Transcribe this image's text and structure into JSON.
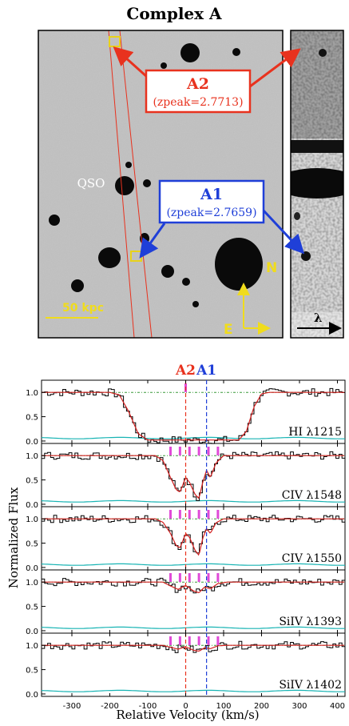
{
  "title": "Complex A",
  "image": {
    "qso_label": "QSO",
    "scale_bar": "50 kpc",
    "compass_n": "N",
    "compass_e": "E",
    "lambda": "λ",
    "a2_name": "A2",
    "a2_z": "(zpeak=2.7713)",
    "a1_name": "A1",
    "a1_z": "(zpeak=2.7659)",
    "colors": {
      "a2": "#e8321e",
      "a1": "#1f3fd8",
      "aperture": "#e8d21a",
      "scale": "#f0dc1c"
    }
  },
  "chart_data": {
    "type": "line",
    "header_a2": "A2",
    "header_a1": "A1",
    "xlabel": "Relative Velocity (km/s)",
    "ylabel": "Normalized Flux",
    "xlim": [
      -380,
      420
    ],
    "x_ticks": [
      "-300",
      "-200",
      "-100",
      "0",
      "100",
      "200",
      "300",
      "400"
    ],
    "x_tick_values": [
      -300,
      -200,
      -100,
      0,
      100,
      200,
      300,
      400
    ],
    "y_ticks": [
      "0.0",
      "0.5",
      "1.0"
    ],
    "vline_a2": 0,
    "vline_a1": 55,
    "panels": [
      {
        "label": "HI λ1215",
        "ylim": [
          -0.05,
          1.25
        ],
        "components": [
          0
        ],
        "model": [
          [
            -380,
            1.0
          ],
          [
            -200,
            1.0
          ],
          [
            -175,
            0.95
          ],
          [
            -150,
            0.6
          ],
          [
            -125,
            0.15
          ],
          [
            -100,
            0.02
          ],
          [
            140,
            0.02
          ],
          [
            160,
            0.2
          ],
          [
            180,
            0.7
          ],
          [
            200,
            0.97
          ],
          [
            220,
            1.0
          ],
          [
            420,
            1.0
          ]
        ]
      },
      {
        "label": "CIV λ1548",
        "ylim": [
          -0.05,
          1.25
        ],
        "components": [
          -40,
          -15,
          10,
          35,
          60,
          85
        ],
        "model": [
          [
            -380,
            1.0
          ],
          [
            -80,
            1.0
          ],
          [
            -60,
            0.9
          ],
          [
            -40,
            0.55
          ],
          [
            -25,
            0.3
          ],
          [
            -15,
            0.25
          ],
          [
            0,
            0.55
          ],
          [
            10,
            0.45
          ],
          [
            25,
            0.2
          ],
          [
            35,
            0.12
          ],
          [
            45,
            0.45
          ],
          [
            55,
            0.7
          ],
          [
            65,
            0.55
          ],
          [
            80,
            0.85
          ],
          [
            100,
            1.0
          ],
          [
            420,
            1.0
          ]
        ]
      },
      {
        "label": "CIV λ1550",
        "ylim": [
          -0.05,
          1.25
        ],
        "components": [
          -40,
          -15,
          10,
          35,
          60,
          85
        ],
        "model": [
          [
            -380,
            1.0
          ],
          [
            -80,
            1.0
          ],
          [
            -60,
            0.93
          ],
          [
            -40,
            0.7
          ],
          [
            -25,
            0.45
          ],
          [
            -15,
            0.4
          ],
          [
            0,
            0.7
          ],
          [
            10,
            0.62
          ],
          [
            25,
            0.35
          ],
          [
            35,
            0.25
          ],
          [
            45,
            0.6
          ],
          [
            55,
            0.8
          ],
          [
            65,
            0.7
          ],
          [
            80,
            0.92
          ],
          [
            100,
            1.0
          ],
          [
            420,
            1.0
          ]
        ]
      },
      {
        "label": "SiIV λ1393",
        "ylim": [
          -0.05,
          1.25
        ],
        "components": [
          -40,
          -15,
          10,
          35,
          60,
          85
        ],
        "model": [
          [
            -380,
            1.0
          ],
          [
            -60,
            1.0
          ],
          [
            -40,
            0.92
          ],
          [
            -20,
            0.85
          ],
          [
            0,
            0.93
          ],
          [
            20,
            0.82
          ],
          [
            35,
            0.78
          ],
          [
            50,
            0.9
          ],
          [
            65,
            0.86
          ],
          [
            85,
            0.97
          ],
          [
            110,
            1.0
          ],
          [
            420,
            1.0
          ]
        ]
      },
      {
        "label": "SiIV λ1402",
        "ylim": [
          -0.05,
          1.25
        ],
        "components": [
          -40,
          -15,
          10,
          35,
          60,
          85
        ],
        "model": [
          [
            -380,
            1.0
          ],
          [
            -60,
            1.0
          ],
          [
            -40,
            0.96
          ],
          [
            -20,
            0.92
          ],
          [
            0,
            0.97
          ],
          [
            20,
            0.9
          ],
          [
            35,
            0.88
          ],
          [
            50,
            0.95
          ],
          [
            65,
            0.93
          ],
          [
            85,
            0.99
          ],
          [
            110,
            1.0
          ],
          [
            420,
            1.0
          ]
        ]
      }
    ]
  }
}
